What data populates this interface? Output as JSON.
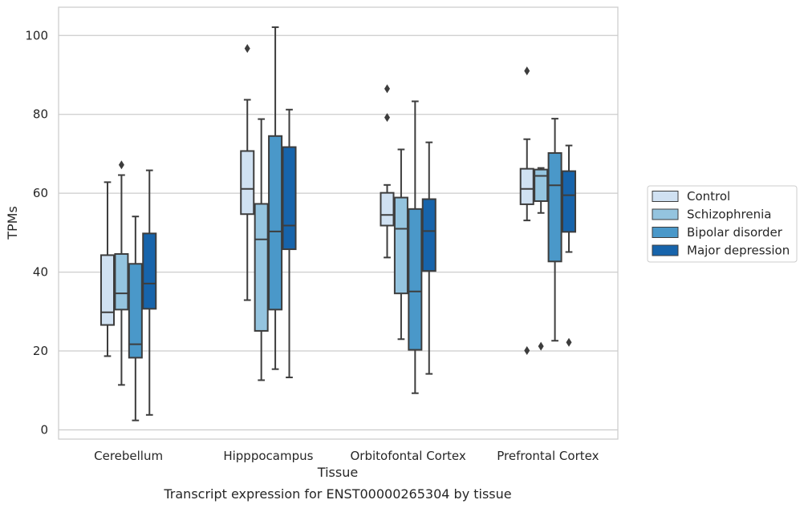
{
  "chart_data": {
    "type": "box",
    "title": "",
    "caption": "Transcript expression for ENST00000265304 by tissue",
    "xlabel": "Tissue",
    "ylabel": "TPMs",
    "ylim": [
      -2,
      107
    ],
    "yticks": [
      0,
      20,
      40,
      60,
      80,
      100
    ],
    "grid": "horizontal",
    "legend_position": "right",
    "categories": [
      "Cerebellum",
      "Hipppocampus",
      "Orbitofontal Cortex",
      "Prefrontal Cortex"
    ],
    "series": [
      {
        "name": "Control",
        "color": "#d0e1f2",
        "boxes": [
          {
            "whislo": 18.7,
            "q1": 26.6,
            "med": 29.8,
            "q3": 44.3,
            "whishi": 62.8,
            "fliers": []
          },
          {
            "whislo": 32.9,
            "q1": 54.7,
            "med": 61.1,
            "q3": 70.7,
            "whishi": 83.7,
            "fliers": [
              96.7
            ]
          },
          {
            "whislo": 43.7,
            "q1": 51.8,
            "med": 54.5,
            "q3": 60.1,
            "whishi": 62.1,
            "fliers": [
              79.2,
              86.5
            ]
          },
          {
            "whislo": 53.1,
            "q1": 57.2,
            "med": 61.1,
            "q3": 66.2,
            "whishi": 73.7,
            "fliers": [
              20.1,
              91.0
            ]
          }
        ]
      },
      {
        "name": "Schizophrenia",
        "color": "#94c4df",
        "boxes": [
          {
            "whislo": 11.4,
            "q1": 30.5,
            "med": 34.6,
            "q3": 44.6,
            "whishi": 64.6,
            "fliers": [
              67.2
            ]
          },
          {
            "whislo": 12.6,
            "q1": 25.1,
            "med": 48.3,
            "q3": 57.3,
            "whishi": 78.8,
            "fliers": []
          },
          {
            "whislo": 23.0,
            "q1": 34.6,
            "med": 51.0,
            "q3": 58.9,
            "whishi": 71.1,
            "fliers": []
          },
          {
            "whislo": 55.0,
            "q1": 58.0,
            "med": 64.4,
            "q3": 66.0,
            "whishi": 66.4,
            "fliers": [
              21.2
            ]
          }
        ]
      },
      {
        "name": "Bipolar disorder",
        "color": "#4a98c9",
        "boxes": [
          {
            "whislo": 2.4,
            "q1": 18.3,
            "med": 21.7,
            "q3": 42.1,
            "whishi": 54.1,
            "fliers": []
          },
          {
            "whislo": 15.4,
            "q1": 30.5,
            "med": 50.3,
            "q3": 74.5,
            "whishi": 102.1,
            "fliers": []
          },
          {
            "whislo": 9.3,
            "q1": 20.3,
            "med": 35.1,
            "q3": 56.0,
            "whishi": 83.3,
            "fliers": []
          },
          {
            "whislo": 22.6,
            "q1": 42.7,
            "med": 62.0,
            "q3": 70.2,
            "whishi": 78.9,
            "fliers": []
          }
        ]
      },
      {
        "name": "Major depression",
        "color": "#1764ab",
        "boxes": [
          {
            "whislo": 3.8,
            "q1": 30.7,
            "med": 37.1,
            "q3": 49.8,
            "whishi": 65.8,
            "fliers": []
          },
          {
            "whislo": 13.3,
            "q1": 45.8,
            "med": 51.8,
            "q3": 71.7,
            "whishi": 81.2,
            "fliers": []
          },
          {
            "whislo": 14.2,
            "q1": 40.3,
            "med": 50.4,
            "q3": 58.5,
            "whishi": 72.9,
            "fliers": []
          },
          {
            "whislo": 45.1,
            "q1": 50.2,
            "med": 59.5,
            "q3": 65.6,
            "whishi": 72.1,
            "fliers": [
              22.2
            ]
          }
        ]
      }
    ]
  }
}
